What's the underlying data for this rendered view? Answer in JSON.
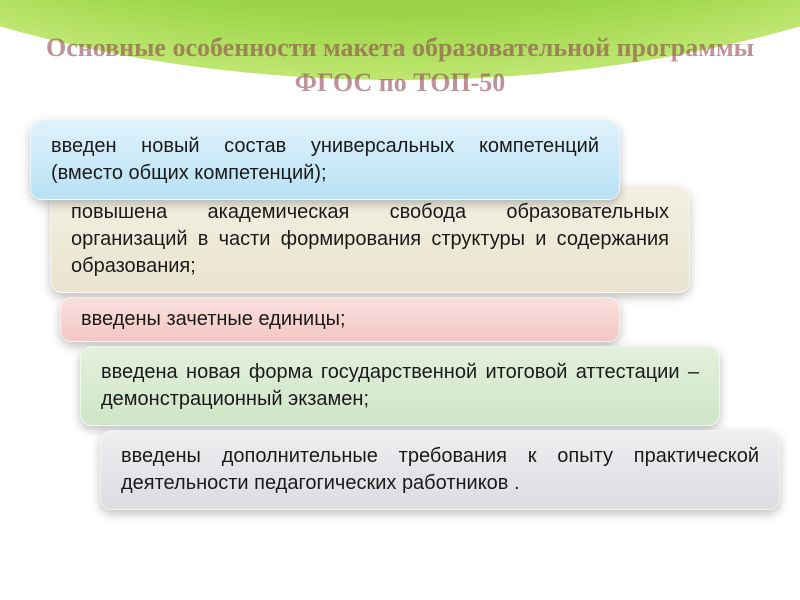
{
  "title": "Основные особенности  макета  образовательной программы ФГОС по ТОП-50",
  "boxes": {
    "b1": "введен новый состав универсальных компетенций (вместо общих компетенций);",
    "b2": "повышена академическая свобода образовательных организаций в части формирования структуры и содержания образования;",
    "b3": "введены зачетные единицы;",
    "b4": "введена новая форма государственной итоговой аттестации – демонстрационный экзамен;",
    "b5": "введены дополнительные требования к опыту практической деятельности педагогических работников ."
  },
  "colors": {
    "arc_inner": "#5a8c1f",
    "arc_outer": "#d4f28a",
    "title_color": "#8a3a4a",
    "box1_bg": "#b7e1f4",
    "box2_bg": "#e9e4cf",
    "box3_bg": "#f3c7c3",
    "box4_bg": "#cfe5c6",
    "box5_bg": "#dcdde1",
    "text_color": "#1a1a1a"
  },
  "typography": {
    "title_fontsize": 26,
    "box_fontsize": 20,
    "title_font": "Georgia, serif",
    "box_font": "Arial, sans-serif"
  },
  "layout": {
    "slide_width": 800,
    "slide_height": 600,
    "box_border_radius": 12,
    "box_indent_step": 20
  }
}
